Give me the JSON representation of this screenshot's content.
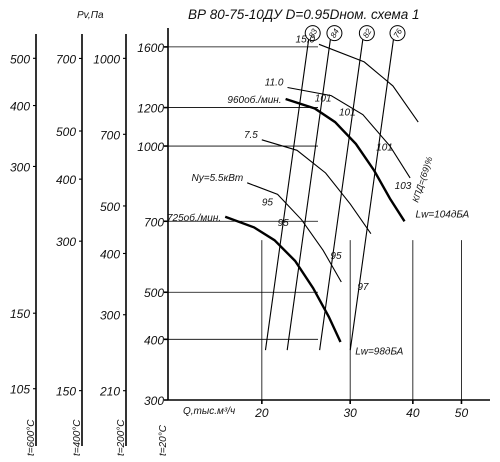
{
  "chart_data": {
    "type": "line",
    "title": "ВР 80-75-10ДУ D=0.95Dном. схема 1",
    "x_axis": {
      "label": "Q,тыс.м³/ч",
      "ticks": [
        20,
        30,
        40,
        50
      ],
      "range": [
        13,
        57
      ],
      "scale": "log"
    },
    "y_axis": {
      "label": "Pv,Па",
      "ticks": [
        300,
        400,
        500,
        700,
        1000,
        1200,
        1600
      ],
      "range": [
        300,
        1750
      ],
      "scale": "log"
    },
    "temperature_scales": [
      {
        "label": "t=600°C",
        "ticks": [
          105,
          150,
          300,
          400,
          500
        ]
      },
      {
        "label": "t=400°C",
        "ticks": [
          150,
          300,
          400,
          500,
          700
        ],
        "header": "Pv,Па"
      },
      {
        "label": "t=200°C",
        "ticks": [
          210,
          300,
          400,
          500,
          700,
          1000
        ]
      },
      {
        "label": "t=20°C",
        "ticks": [
          300,
          400,
          500,
          700,
          1000,
          1200,
          1600
        ]
      }
    ],
    "series": [
      {
        "name": "960об./мин.",
        "points": [
          [
            22.3,
            1250
          ],
          [
            25.5,
            1195
          ],
          [
            28.0,
            1120
          ],
          [
            30.8,
            1010
          ],
          [
            33.5,
            890
          ],
          [
            36.0,
            780
          ],
          [
            38.5,
            700
          ]
        ]
      },
      {
        "name": "725об./мин.",
        "points": [
          [
            16.9,
            715
          ],
          [
            19.3,
            680
          ],
          [
            21.2,
            640
          ],
          [
            23.3,
            580
          ],
          [
            25.3,
            510
          ],
          [
            27.2,
            445
          ],
          [
            28.7,
            395
          ]
        ]
      }
    ],
    "power_lines": [
      {
        "label": "15.0",
        "points": [
          [
            26.0,
            1620
          ],
          [
            32.0,
            1490
          ],
          [
            36.5,
            1330
          ],
          [
            41.0,
            1120
          ]
        ]
      },
      {
        "label": "11.0",
        "points": [
          [
            22.5,
            1320
          ],
          [
            27.5,
            1270
          ],
          [
            31.8,
            1160
          ],
          [
            36.0,
            1000
          ],
          [
            39.5,
            860
          ]
        ]
      },
      {
        "label": "7.5",
        "points": [
          [
            20.0,
            1030
          ],
          [
            23.5,
            980
          ],
          [
            26.8,
            880
          ],
          [
            30.0,
            760
          ],
          [
            33.0,
            660
          ]
        ]
      },
      {
        "label": "Ny=5.5кВт",
        "points": [
          [
            18.7,
            840
          ],
          [
            21.5,
            795
          ],
          [
            24.0,
            705
          ],
          [
            26.5,
            610
          ],
          [
            28.8,
            525
          ]
        ]
      }
    ],
    "efficiency_rays": [
      {
        "label": "83",
        "q_top": 24.8
      },
      {
        "label": "84",
        "q_top": 27.4
      },
      {
        "label": "82",
        "q_top": 31.8
      },
      {
        "label": "76",
        "q_top": 36.6
      }
    ],
    "efficiency_axis_label": "КПД=(69)%",
    "efficiency_circled": [
      "69"
    ],
    "point_labels": [
      {
        "text": "101",
        "q": 25.5,
        "p": 1235
      },
      {
        "text": "101",
        "q": 28.5,
        "p": 1155
      },
      {
        "text": "101",
        "q": 33.8,
        "p": 980
      },
      {
        "text": "103",
        "q": 36.8,
        "p": 815
      },
      {
        "text": "95",
        "q": 20.0,
        "p": 755
      },
      {
        "text": "95",
        "q": 21.5,
        "p": 685
      },
      {
        "text": "95",
        "q": 27.4,
        "p": 585
      },
      {
        "text": "97",
        "q": 31.0,
        "p": 505
      }
    ],
    "noise_labels": [
      {
        "text": "Lw=104дБА",
        "q": 40.5,
        "p": 712
      },
      {
        "text": "Lw=98дБА",
        "q": 30.7,
        "p": 372
      }
    ],
    "grid": true
  }
}
